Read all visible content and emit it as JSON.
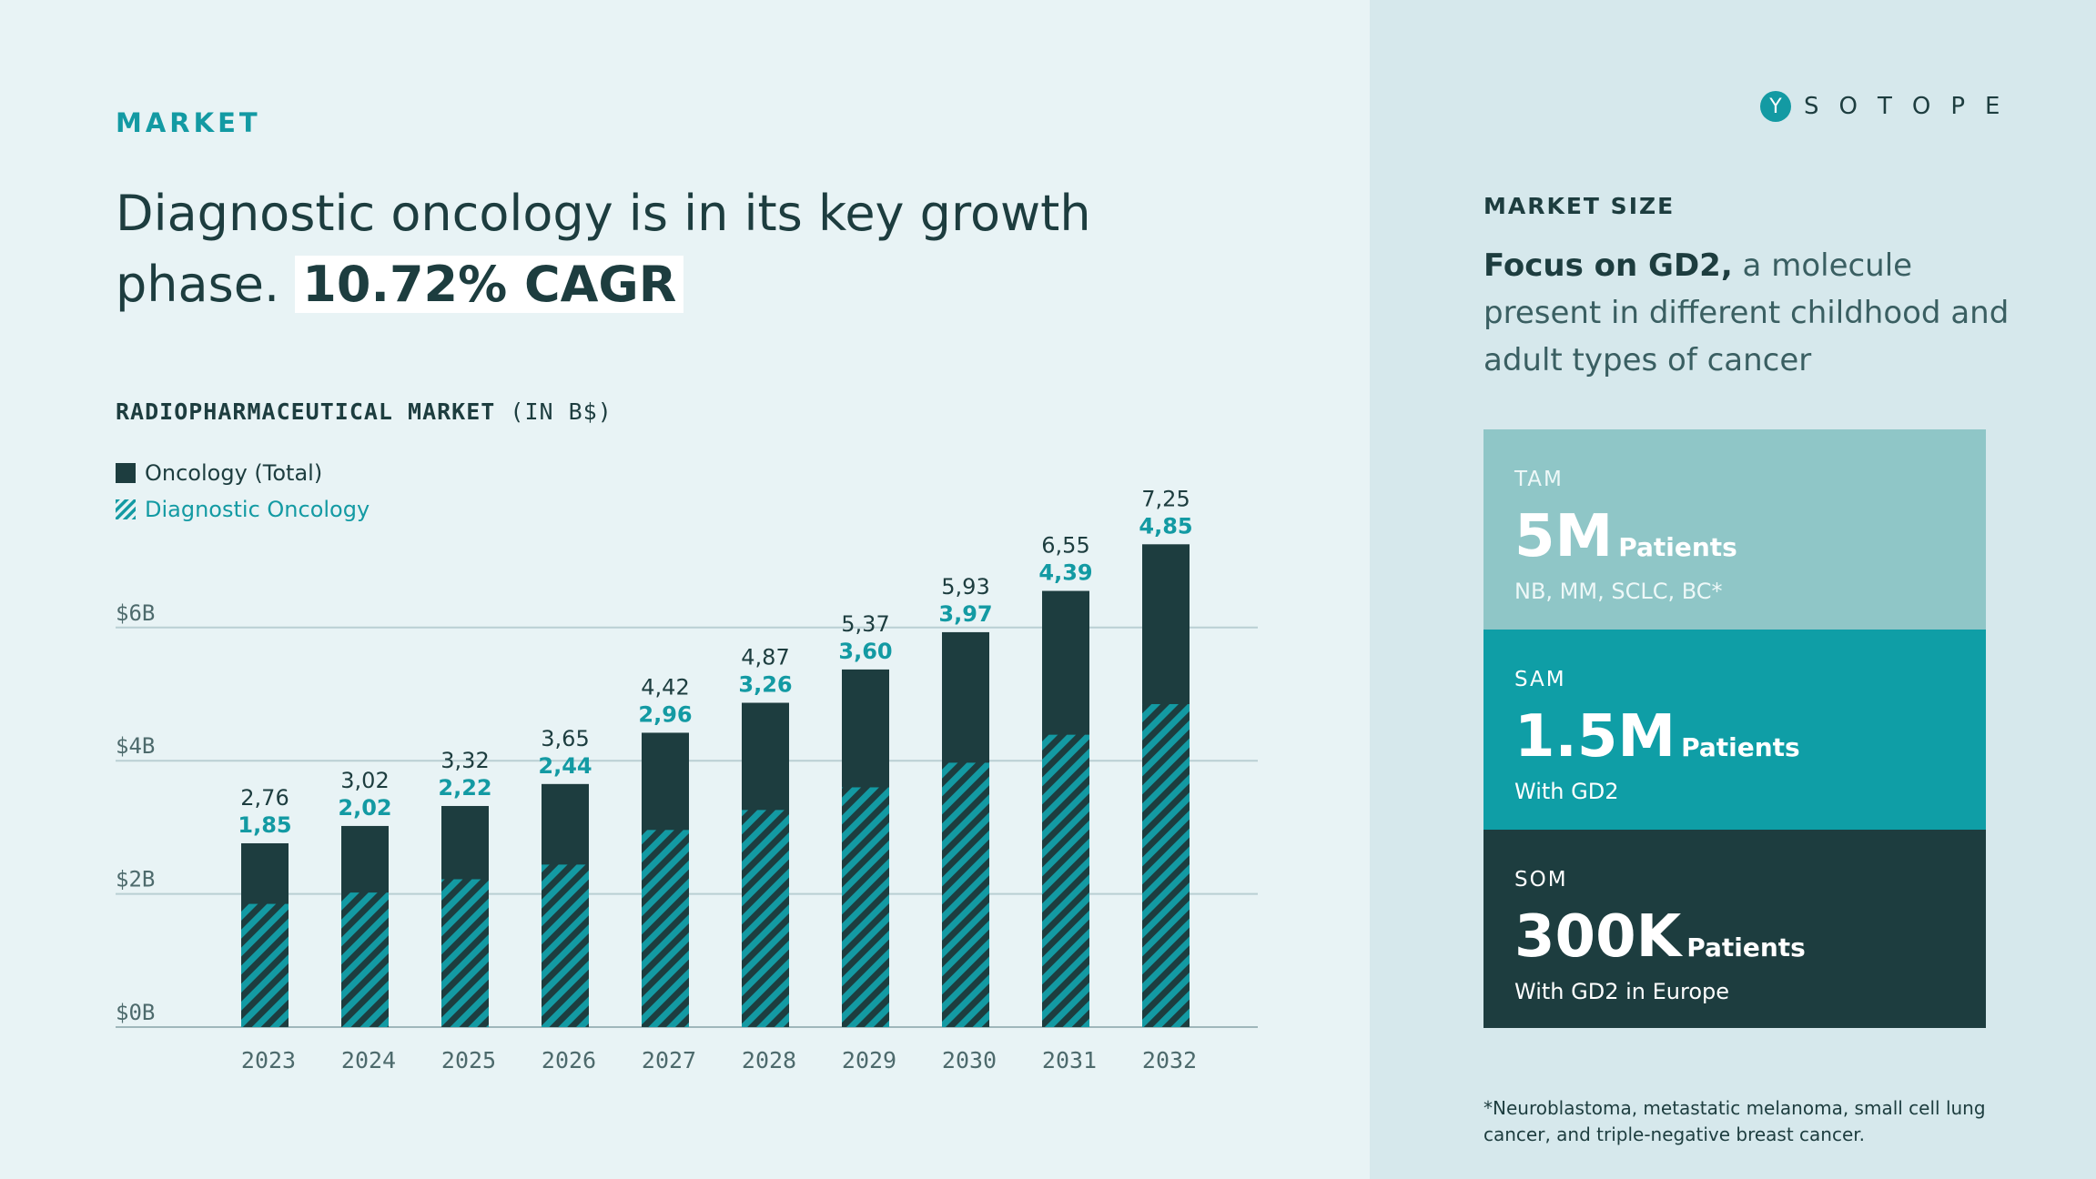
{
  "section": {
    "eyebrow": "MARKET"
  },
  "headline": {
    "text": "Diagnostic oncology is in its key growth phase.",
    "highlight": "10.72% CAGR"
  },
  "chart_header": {
    "title": "RADIOPHARMACEUTICAL MARKET",
    "unit": "(IN B$)"
  },
  "legend": [
    {
      "label": "Oncology (Total)"
    },
    {
      "label": "Diagnostic Oncology"
    }
  ],
  "colors": {
    "teal": "#139aa3",
    "dark": "#1d3d3f",
    "light_teal": "#8fc6c7",
    "grid": "#b9cfd3"
  },
  "chart_data": {
    "type": "bar",
    "title": "RADIOPHARMACEUTICAL MARKET (IN B$)",
    "xlabel": "",
    "ylabel": "",
    "ylim": [
      0,
      8
    ],
    "yticks": [
      {
        "value": 0,
        "label": "$0B"
      },
      {
        "value": 2,
        "label": "$2B"
      },
      {
        "value": 4,
        "label": "$4B"
      },
      {
        "value": 6,
        "label": "$6B"
      }
    ],
    "grid": true,
    "legend_position": "top-left",
    "categories": [
      "2023",
      "2024",
      "2025",
      "2026",
      "2027",
      "2028",
      "2029",
      "2030",
      "2031",
      "2032"
    ],
    "series": [
      {
        "name": "Oncology (Total)",
        "values": [
          2.76,
          3.02,
          3.32,
          3.65,
          4.42,
          4.87,
          5.37,
          5.93,
          6.55,
          7.25
        ],
        "labels": [
          "2,76",
          "3,02",
          "3,32",
          "3,65",
          "4,42",
          "4,87",
          "5,37",
          "5,93",
          "6,55",
          "7,25"
        ]
      },
      {
        "name": "Diagnostic Oncology",
        "values": [
          1.85,
          2.02,
          2.22,
          2.44,
          2.96,
          3.26,
          3.6,
          3.97,
          4.39,
          4.85
        ],
        "labels": [
          "1,85",
          "2,02",
          "2,22",
          "2,44",
          "2,96",
          "3,26",
          "3,60",
          "3,97",
          "4,39",
          "4,85"
        ]
      }
    ]
  },
  "logo": {
    "mark": "Y",
    "text": "SOTOPE"
  },
  "market_size": {
    "label": "MARKET SIZE",
    "desc_bold": "Focus on GD2,",
    "desc_rest": " a molecule present in different childhood and adult types of cancer",
    "tiers": [
      {
        "label": "TAM",
        "value": "5M",
        "unit": "Patients",
        "sub": "NB, MM, SCLC, BC*"
      },
      {
        "label": "SAM",
        "value": "1.5M",
        "unit": "Patients",
        "sub": "With GD2"
      },
      {
        "label": "SOM",
        "value": "300K",
        "unit": "Patients",
        "sub": "With GD2 in Europe"
      }
    ],
    "footnote": "*Neuroblastoma, metastatic melanoma, small cell lung cancer, and triple-negative breast cancer."
  }
}
